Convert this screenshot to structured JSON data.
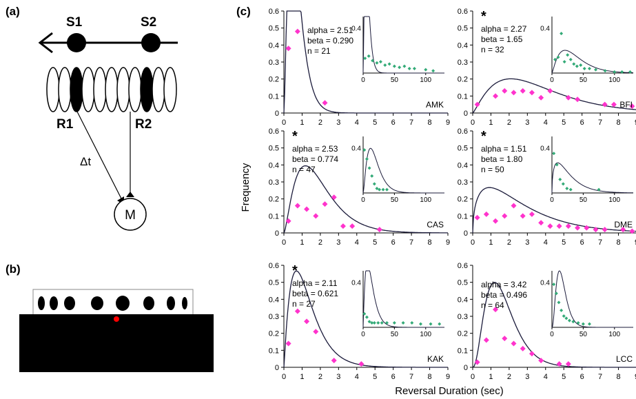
{
  "panel_a": {
    "label": "(a)",
    "sensor_1": "S1",
    "sensor_2": "S2",
    "receptor_1": "R1",
    "receptor_2": "R2",
    "delay": "Δt",
    "motor": "M"
  },
  "panel_b": {
    "label": "(b)"
  },
  "panel_c": {
    "label": "(c)",
    "ylabel": "Frequency",
    "xlabel": "Reversal Duration (sec)"
  },
  "colors": {
    "main_points": "#ff33cc",
    "inset_points": "#33aa77",
    "stimulus_dot": "#ff0000"
  },
  "chart_data": [
    {
      "type": "scatter",
      "name": "AMK",
      "star": false,
      "stats": [
        "alpha = 2.51",
        "beta = 0.290",
        "n = 21"
      ],
      "x_ticks": [
        0,
        1,
        2,
        3,
        4,
        5,
        6,
        7,
        8,
        9
      ],
      "y_ticks": [
        0,
        0.1,
        0.2,
        0.3,
        0.4,
        0.5,
        0.6
      ],
      "xlim": [
        0,
        9
      ],
      "ylim": [
        0,
        0.6
      ],
      "points": [
        [
          0.25,
          0.38
        ],
        [
          0.75,
          0.48
        ],
        [
          2.25,
          0.06
        ]
      ],
      "curve": {
        "alpha": 2.51,
        "beta": 0.29
      },
      "inset": {
        "ytick": "0.4",
        "x_ticks": [
          0,
          50,
          100
        ],
        "xlim": [
          0,
          130
        ],
        "ylim": [
          0,
          0.5
        ],
        "points": [
          [
            3,
            0.13
          ],
          [
            9,
            0.15
          ],
          [
            15,
            0.11
          ],
          [
            22,
            0.09
          ],
          [
            28,
            0.1
          ],
          [
            35,
            0.07
          ],
          [
            42,
            0.08
          ],
          [
            50,
            0.06
          ],
          [
            58,
            0.05
          ],
          [
            66,
            0.06
          ],
          [
            74,
            0.04
          ],
          [
            82,
            0.04
          ],
          [
            100,
            0.03
          ],
          [
            112,
            0.02
          ]
        ],
        "curve": {
          "alpha": 2.51,
          "beta": 0.29
        }
      }
    },
    {
      "type": "scatter",
      "name": "BFI",
      "star": true,
      "stats": [
        "alpha = 2.27",
        "beta = 1.65",
        "n = 32"
      ],
      "x_ticks": [
        0,
        1,
        2,
        3,
        4,
        5,
        6,
        7,
        8,
        9
      ],
      "y_ticks": [
        0,
        0.1,
        0.2,
        0.3,
        0.4,
        0.5,
        0.6
      ],
      "xlim": [
        0,
        9
      ],
      "ylim": [
        0,
        0.6
      ],
      "points": [
        [
          0.25,
          0.05
        ],
        [
          1.25,
          0.1
        ],
        [
          1.75,
          0.13
        ],
        [
          2.25,
          0.12
        ],
        [
          2.75,
          0.13
        ],
        [
          3.25,
          0.12
        ],
        [
          3.75,
          0.09
        ],
        [
          4.25,
          0.13
        ],
        [
          5.25,
          0.09
        ],
        [
          5.75,
          0.08
        ],
        [
          7.25,
          0.05
        ],
        [
          7.75,
          0.05
        ],
        [
          8.75,
          0.04
        ]
      ],
      "curve": {
        "alpha": 2.27,
        "beta": 1.65
      },
      "inset": {
        "ytick": "0.4",
        "x_ticks": [
          0,
          50,
          100
        ],
        "xlim": [
          0,
          130
        ],
        "ylim": [
          0,
          0.5
        ],
        "points": [
          [
            5,
            0.12
          ],
          [
            10,
            0.14
          ],
          [
            15,
            0.35
          ],
          [
            20,
            0.1
          ],
          [
            25,
            0.16
          ],
          [
            30,
            0.12
          ],
          [
            35,
            0.08
          ],
          [
            40,
            0.06
          ],
          [
            46,
            0.07
          ],
          [
            52,
            0.04
          ],
          [
            60,
            0.04
          ],
          [
            70,
            0.03
          ],
          [
            85,
            0.02
          ],
          [
            100,
            0.01
          ],
          [
            112,
            0.01
          ],
          [
            125,
            0.01
          ]
        ],
        "curve": {
          "alpha": 2.27,
          "beta": 1.65
        }
      }
    },
    {
      "type": "scatter",
      "name": "CAS",
      "star": true,
      "stats": [
        "alpha = 2.53",
        "beta = 0.774",
        "n = 47"
      ],
      "x_ticks": [
        0,
        1,
        2,
        3,
        4,
        5,
        6,
        7,
        8,
        9
      ],
      "y_ticks": [
        0,
        0.1,
        0.2,
        0.3,
        0.4,
        0.5,
        0.6
      ],
      "xlim": [
        0,
        9
      ],
      "ylim": [
        0,
        0.6
      ],
      "points": [
        [
          0.25,
          0.07
        ],
        [
          0.75,
          0.16
        ],
        [
          1.25,
          0.14
        ],
        [
          1.75,
          0.1
        ],
        [
          2.25,
          0.17
        ],
        [
          2.75,
          0.21
        ],
        [
          3.25,
          0.04
        ],
        [
          3.75,
          0.04
        ],
        [
          5.25,
          0.02
        ]
      ],
      "curve": {
        "alpha": 2.53,
        "beta": 0.774
      },
      "inset": {
        "ytick": "0.4",
        "x_ticks": [
          0,
          50,
          100
        ],
        "xlim": [
          0,
          130
        ],
        "ylim": [
          0,
          0.5
        ],
        "points": [
          [
            2,
            0.38
          ],
          [
            6,
            0.3
          ],
          [
            10,
            0.22
          ],
          [
            14,
            0.15
          ],
          [
            18,
            0.08
          ],
          [
            22,
            0.04
          ],
          [
            26,
            0.03
          ],
          [
            32,
            0.03
          ],
          [
            38,
            0.03
          ]
        ],
        "curve": {
          "alpha": 2.53,
          "beta": 0.774
        }
      }
    },
    {
      "type": "scatter",
      "name": "DME",
      "star": true,
      "stats": [
        "alpha = 1.51",
        "beta = 1.80",
        "n = 50"
      ],
      "x_ticks": [
        0,
        1,
        2,
        3,
        4,
        5,
        6,
        7,
        8,
        9
      ],
      "y_ticks": [
        0,
        0.1,
        0.2,
        0.3,
        0.4,
        0.5,
        0.6
      ],
      "xlim": [
        0,
        9
      ],
      "ylim": [
        0,
        0.6
      ],
      "points": [
        [
          0.25,
          0.09
        ],
        [
          0.75,
          0.11
        ],
        [
          1.25,
          0.07
        ],
        [
          1.75,
          0.1
        ],
        [
          2.25,
          0.16
        ],
        [
          2.75,
          0.1
        ],
        [
          3.25,
          0.11
        ],
        [
          3.75,
          0.06
        ],
        [
          4.25,
          0.04
        ],
        [
          4.75,
          0.04
        ],
        [
          5.25,
          0.04
        ],
        [
          5.75,
          0.03
        ],
        [
          6.25,
          0.03
        ],
        [
          6.75,
          0.02
        ],
        [
          7.25,
          0.02
        ],
        [
          8.25,
          0.02
        ],
        [
          8.75,
          0.01
        ]
      ],
      "curve": {
        "alpha": 1.51,
        "beta": 1.8
      },
      "inset": {
        "ytick": "0.4",
        "x_ticks": [
          0,
          50,
          100
        ],
        "xlim": [
          0,
          130
        ],
        "ylim": [
          0,
          0.5
        ],
        "points": [
          [
            3,
            0.35
          ],
          [
            8,
            0.25
          ],
          [
            13,
            0.12
          ],
          [
            18,
            0.08
          ],
          [
            24,
            0.04
          ],
          [
            30,
            0.03
          ],
          [
            75,
            0.03
          ]
        ],
        "curve": {
          "alpha": 1.51,
          "beta": 1.8
        }
      }
    },
    {
      "type": "scatter",
      "name": "KAK",
      "star": true,
      "stats": [
        "alpha = 2.11",
        "beta = 0.621",
        "n = 27"
      ],
      "x_ticks": [
        0,
        1,
        2,
        3,
        4,
        5,
        6,
        7,
        8,
        9
      ],
      "y_ticks": [
        0,
        0.1,
        0.2,
        0.3,
        0.4,
        0.5,
        0.6
      ],
      "xlim": [
        0,
        9
      ],
      "ylim": [
        0,
        0.6
      ],
      "points": [
        [
          0.25,
          0.14
        ],
        [
          0.75,
          0.33
        ],
        [
          1.25,
          0.27
        ],
        [
          1.75,
          0.21
        ],
        [
          2.75,
          0.04
        ],
        [
          4.25,
          0.02
        ]
      ],
      "curve": {
        "alpha": 2.11,
        "beta": 0.621
      },
      "inset": {
        "ytick": "0.4",
        "x_ticks": [
          0,
          50,
          100
        ],
        "xlim": [
          0,
          130
        ],
        "ylim": [
          0,
          0.5
        ],
        "points": [
          [
            2,
            0.12
          ],
          [
            6,
            0.09
          ],
          [
            10,
            0.05
          ],
          [
            14,
            0.04
          ],
          [
            18,
            0.04
          ],
          [
            24,
            0.04
          ],
          [
            30,
            0.04
          ],
          [
            38,
            0.04
          ],
          [
            50,
            0.04
          ],
          [
            64,
            0.04
          ],
          [
            78,
            0.04
          ],
          [
            92,
            0.03
          ],
          [
            108,
            0.03
          ],
          [
            122,
            0.03
          ]
        ],
        "curve": {
          "alpha": 2.11,
          "beta": 0.621
        }
      }
    },
    {
      "type": "scatter",
      "name": "LCC",
      "star": false,
      "stats": [
        "alpha = 3.42",
        "beta = 0.496",
        "n = 64"
      ],
      "x_ticks": [
        0,
        1,
        2,
        3,
        4,
        5,
        6,
        7,
        8,
        9
      ],
      "y_ticks": [
        0,
        0.1,
        0.2,
        0.3,
        0.4,
        0.5,
        0.6
      ],
      "xlim": [
        0,
        9
      ],
      "ylim": [
        0,
        0.6
      ],
      "points": [
        [
          0.25,
          0.03
        ],
        [
          0.75,
          0.16
        ],
        [
          1.25,
          0.34
        ],
        [
          1.75,
          0.17
        ],
        [
          2.25,
          0.14
        ],
        [
          2.75,
          0.11
        ],
        [
          3.25,
          0.08
        ],
        [
          3.75,
          0.04
        ],
        [
          4.75,
          0.02
        ],
        [
          5.25,
          0.02
        ]
      ],
      "curve": {
        "alpha": 3.42,
        "beta": 0.496
      },
      "inset": {
        "ytick": "0.4",
        "x_ticks": [
          0,
          50,
          100
        ],
        "xlim": [
          0,
          130
        ],
        "ylim": [
          0,
          0.5
        ],
        "points": [
          [
            3,
            0.38
          ],
          [
            7,
            0.3
          ],
          [
            11,
            0.22
          ],
          [
            15,
            0.15
          ],
          [
            19,
            0.1
          ],
          [
            23,
            0.08
          ],
          [
            28,
            0.06
          ],
          [
            34,
            0.05
          ],
          [
            42,
            0.04
          ],
          [
            50,
            0.03
          ],
          [
            60,
            0.03
          ]
        ],
        "curve": {
          "alpha": 3.42,
          "beta": 0.496
        }
      }
    }
  ]
}
